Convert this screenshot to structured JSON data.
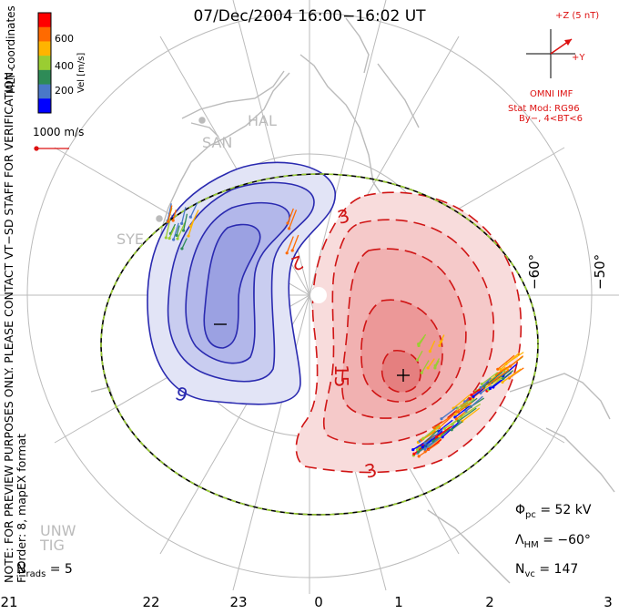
{
  "title": "07/Dec/2004 16:00−16:02 UT",
  "colorbar": {
    "label": "Vel [m/s]",
    "ticks": [
      "600",
      "400",
      "200"
    ],
    "colors": [
      "#ff0000",
      "#ff6a00",
      "#ffb400",
      "#9acd32",
      "#2e8b57",
      "#4a78c8",
      "#0000ff"
    ]
  },
  "coord_label": "MLT coordinates",
  "ref_vector_label": "1000 m/s",
  "imf": {
    "z_label": "+Z (5 nT)",
    "y_label": "+Y",
    "source": "OMNI IMF",
    "model": "Stat Mod: RG96",
    "condition": "By−, 4<BT<6"
  },
  "stations": [
    "HAL",
    "SAN",
    "SYE",
    "UNW",
    "TIG"
  ],
  "latitude_labels": [
    "−60°",
    "−50°"
  ],
  "contour_labels": [
    "3",
    "2",
    "15",
    "3",
    "6"
  ],
  "extrema": {
    "min": "−",
    "max": "+"
  },
  "mlt_labels": [
    "21",
    "22",
    "23",
    "0",
    "1",
    "2",
    "3"
  ],
  "stats": {
    "phi_pc": {
      "symbol": "Φ",
      "sub": "pc",
      "value": "= 52 kV"
    },
    "lambda_hm": {
      "symbol": "Λ",
      "sub": "HM",
      "value": "= −60°"
    },
    "n_vc": {
      "symbol": "N",
      "sub": "vc",
      "value": "= 147"
    },
    "n_rads": {
      "symbol": "N",
      "sub": "rads",
      "value": "= 5"
    }
  },
  "notes": {
    "preview": "NOTE: FOR PREVIEW PURPOSES ONLY. PLEASE CONTACT VT−SD STAFF FOR VERIFICATION.",
    "fit": "FitOrder: 8, mapEX format"
  }
}
